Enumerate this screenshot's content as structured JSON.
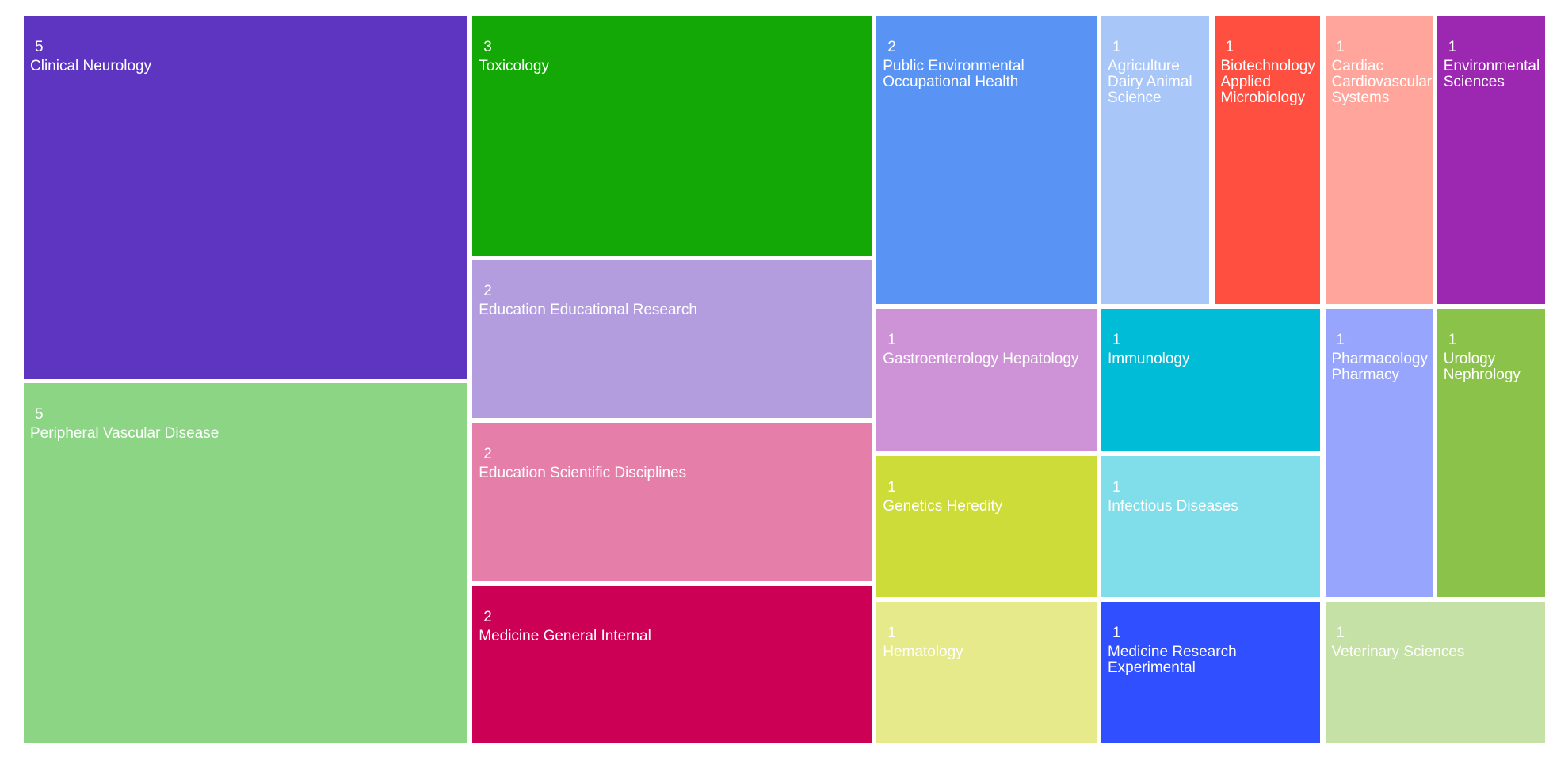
{
  "chart_data": {
    "type": "treemap",
    "categories": [
      "Clinical Neurology",
      "Peripheral Vascular Disease",
      "Toxicology",
      "Education Educational Research",
      "Education Scientific Disciplines",
      "Medicine General Internal",
      "Public Environmental Occupational Health",
      "Agriculture Dairy Animal Science",
      "Biotechnology Applied Microbiology",
      "Cardiac Cardiovascular Systems",
      "Environmental Sciences",
      "Gastroenterology Hepatology",
      "Immunology",
      "Pharmacology Pharmacy",
      "Urology Nephrology",
      "Genetics Heredity",
      "Infectious Diseases",
      "Hematology",
      "Medicine Research Experimental",
      "Veterinary Sciences"
    ],
    "values": [
      5,
      5,
      3,
      2,
      2,
      2,
      2,
      1,
      1,
      1,
      1,
      1,
      1,
      1,
      1,
      1,
      1,
      1,
      1,
      1
    ],
    "colors": [
      "#5e35c1",
      "#8cd584",
      "#14a806",
      "#b39ddf",
      "#e57fa9",
      "#cc0054",
      "#5994f5",
      "#a8c6f7",
      "#ff4f40",
      "#ffa59b",
      "#9c27b0",
      "#ce93d6",
      "#00bcd6",
      "#98a5fc",
      "#8bc34a",
      "#cddc39",
      "#80deea",
      "#e6ea8a",
      "#304ffe",
      "#c5e1a5"
    ]
  }
}
